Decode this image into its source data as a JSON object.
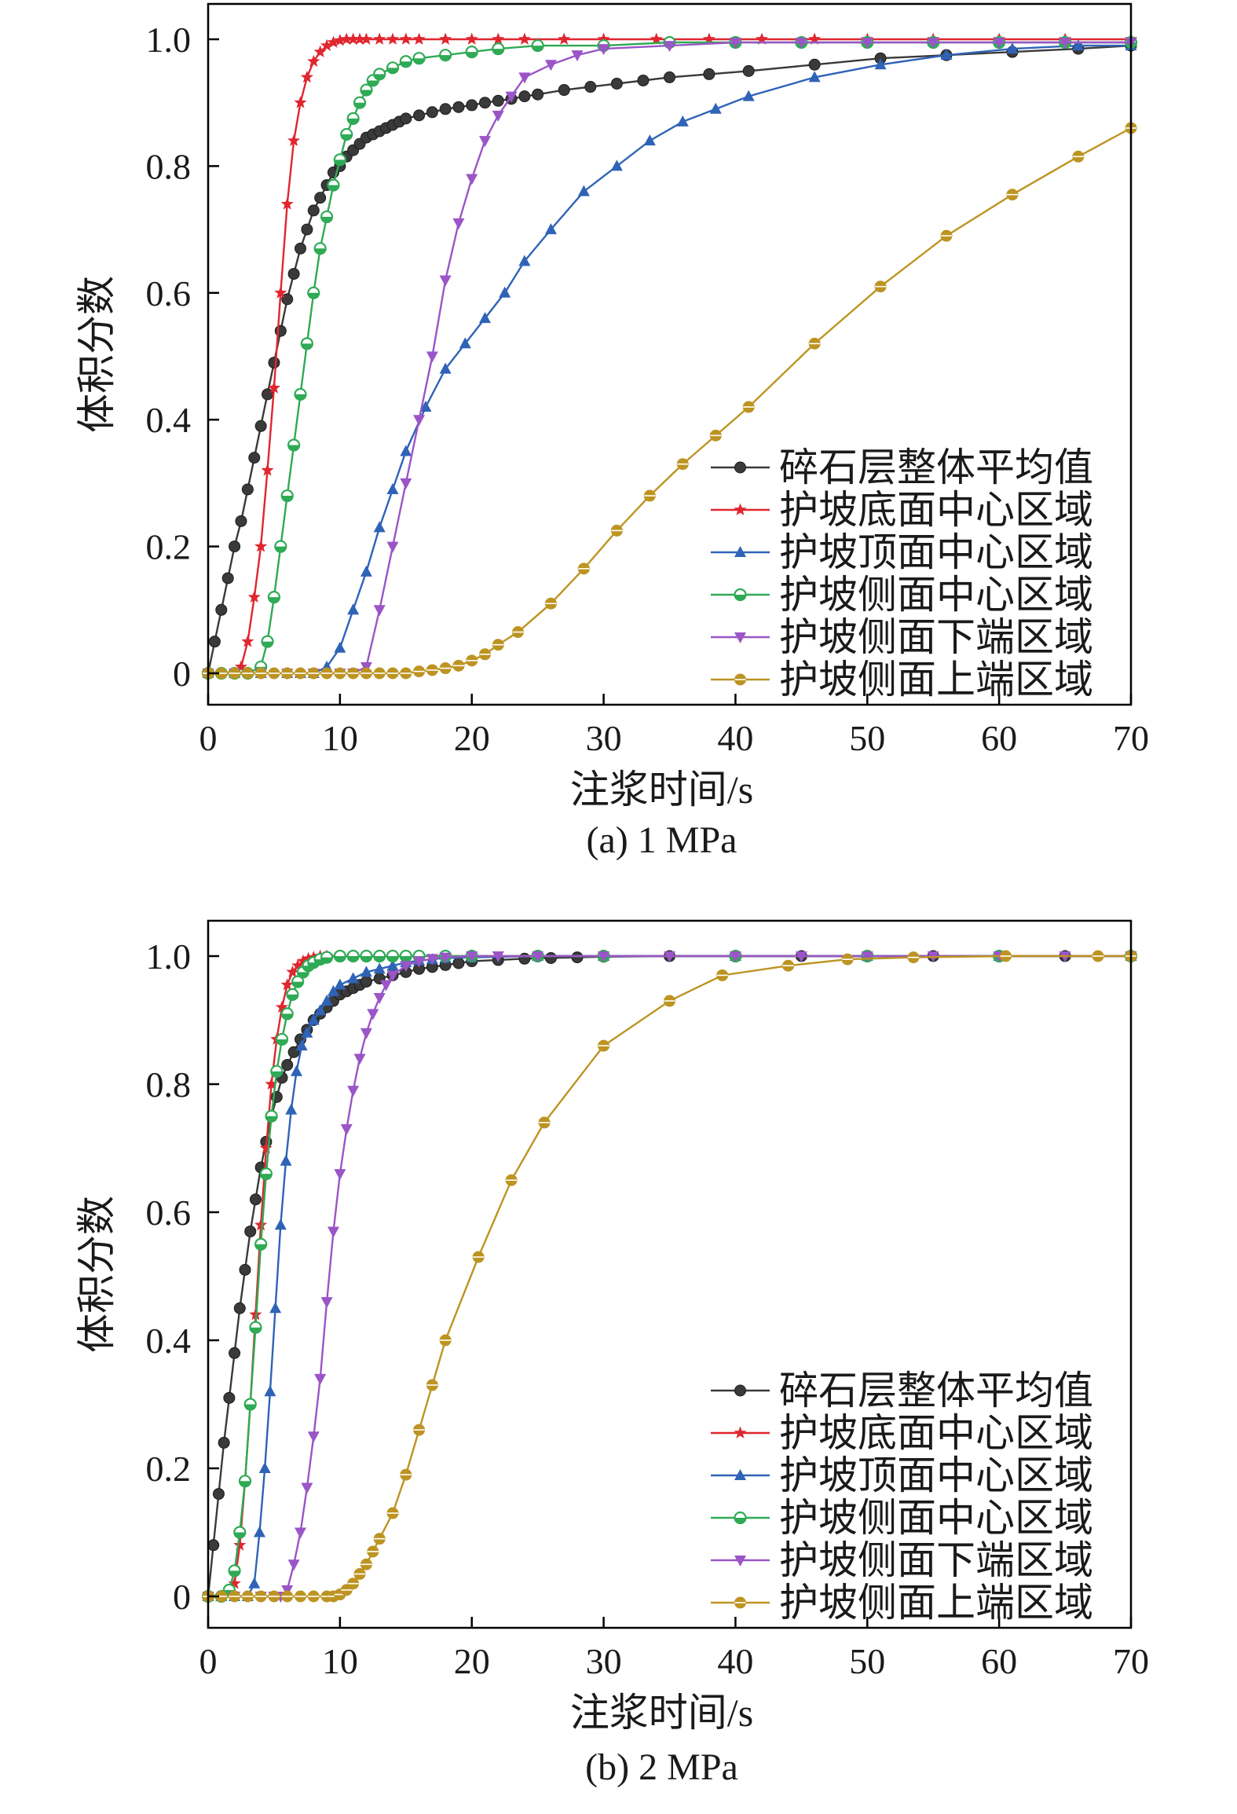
{
  "colors": {
    "average": "#3a3a3a",
    "bottom_center": "#e0262f",
    "top_center": "#2f63b7",
    "side_center": "#2faa55",
    "side_lower": "#9a55c7",
    "side_upper": "#bd9422",
    "axis": "#000000"
  },
  "chart_data": [
    {
      "type": "line",
      "caption": "(a) 1 MPa",
      "xlabel": "注浆时间/s",
      "ylabel": "体积分数",
      "xlim": [
        0,
        70
      ],
      "ylim": [
        0,
        1.0
      ],
      "xticks": [
        "0",
        "10",
        "20",
        "30",
        "40",
        "50",
        "60",
        "70"
      ],
      "yticks": [
        "0",
        "0.2",
        "0.4",
        "0.6",
        "0.8",
        "1.0"
      ],
      "legend_position": "bottom-right",
      "series": [
        {
          "name": "碎石层整体平均值",
          "marker": "circle",
          "color_key": "average",
          "x": [
            0,
            0.5,
            1,
            1.5,
            2,
            2.5,
            3,
            3.5,
            4,
            4.5,
            5,
            5.5,
            6,
            6.5,
            7,
            7.5,
            8,
            8.5,
            9,
            9.5,
            10,
            10.5,
            11,
            11.5,
            12,
            12.5,
            13,
            13.5,
            14,
            14.5,
            15,
            16,
            17,
            18,
            19,
            20,
            21,
            22,
            23,
            24,
            25,
            27,
            29,
            31,
            33,
            35,
            38,
            41,
            46,
            51,
            56,
            61,
            66,
            70
          ],
          "y": [
            0,
            0.05,
            0.1,
            0.15,
            0.2,
            0.24,
            0.29,
            0.34,
            0.39,
            0.44,
            0.49,
            0.54,
            0.59,
            0.63,
            0.67,
            0.7,
            0.73,
            0.75,
            0.77,
            0.79,
            0.8,
            0.815,
            0.825,
            0.835,
            0.845,
            0.85,
            0.855,
            0.86,
            0.865,
            0.87,
            0.875,
            0.88,
            0.885,
            0.89,
            0.893,
            0.896,
            0.9,
            0.903,
            0.906,
            0.91,
            0.913,
            0.92,
            0.925,
            0.93,
            0.935,
            0.94,
            0.945,
            0.95,
            0.96,
            0.97,
            0.975,
            0.98,
            0.985,
            0.99
          ]
        },
        {
          "name": "护坡底面中心区域",
          "marker": "star",
          "color_key": "bottom_center",
          "x": [
            0,
            1,
            2,
            2.5,
            3,
            3.5,
            4,
            4.5,
            5,
            5.5,
            6,
            6.5,
            7,
            7.5,
            8,
            8.5,
            9,
            9.5,
            10,
            10.5,
            11,
            11.5,
            12,
            13,
            14,
            15,
            16,
            18,
            20,
            22,
            24,
            27,
            30,
            34,
            38,
            42,
            46,
            50,
            55,
            60,
            65,
            70
          ],
          "y": [
            0,
            0,
            0,
            0.01,
            0.05,
            0.12,
            0.2,
            0.32,
            0.45,
            0.6,
            0.74,
            0.84,
            0.9,
            0.94,
            0.965,
            0.98,
            0.99,
            0.995,
            0.998,
            1,
            1,
            1,
            1,
            1,
            1,
            1,
            1,
            1,
            1,
            1,
            1,
            1,
            1,
            1,
            1,
            1,
            1,
            1,
            1,
            1,
            1,
            1
          ]
        },
        {
          "name": "护坡顶面中心区域",
          "marker": "triangle-up",
          "color_key": "top_center",
          "x": [
            0,
            2,
            4,
            6,
            7,
            8,
            9,
            10,
            11,
            12,
            13,
            14,
            15,
            16.5,
            18,
            19.5,
            21,
            22.5,
            24,
            26,
            28.5,
            31,
            33.5,
            36,
            38.5,
            41,
            46,
            51,
            56,
            61,
            66,
            70
          ],
          "y": [
            0,
            0,
            0,
            0,
            0,
            0,
            0.01,
            0.04,
            0.1,
            0.16,
            0.23,
            0.29,
            0.35,
            0.42,
            0.48,
            0.52,
            0.56,
            0.6,
            0.65,
            0.7,
            0.76,
            0.8,
            0.84,
            0.87,
            0.89,
            0.91,
            0.94,
            0.96,
            0.975,
            0.985,
            0.99,
            0.99
          ]
        },
        {
          "name": "护坡侧面中心区域",
          "marker": "circle-half",
          "color_key": "side_center",
          "x": [
            0,
            1,
            2,
            3,
            4,
            4.5,
            5,
            5.5,
            6,
            6.5,
            7,
            7.5,
            8,
            8.5,
            9,
            9.5,
            10,
            10.5,
            11,
            11.5,
            12,
            12.5,
            13,
            14,
            15,
            16,
            18,
            20,
            22,
            25,
            30,
            35,
            40,
            45,
            50,
            55,
            60,
            65,
            70
          ],
          "y": [
            0,
            0,
            0,
            0,
            0.01,
            0.05,
            0.12,
            0.2,
            0.28,
            0.36,
            0.44,
            0.52,
            0.6,
            0.67,
            0.72,
            0.77,
            0.81,
            0.85,
            0.875,
            0.9,
            0.92,
            0.935,
            0.945,
            0.955,
            0.965,
            0.97,
            0.975,
            0.98,
            0.985,
            0.99,
            0.99,
            0.995,
            0.995,
            0.995,
            0.995,
            0.995,
            0.995,
            0.995,
            0.995
          ]
        },
        {
          "name": "护坡侧面下端区域",
          "marker": "triangle-down",
          "color_key": "side_lower",
          "x": [
            0,
            2,
            4,
            6,
            8,
            10,
            11,
            12,
            13,
            14,
            15,
            16,
            17,
            18,
            19,
            20,
            21,
            22,
            23,
            24,
            26,
            28,
            30,
            35,
            40,
            45,
            50,
            55,
            60,
            65,
            70
          ],
          "y": [
            0,
            0,
            0,
            0,
            0,
            0,
            0,
            0.01,
            0.1,
            0.2,
            0.3,
            0.4,
            0.5,
            0.62,
            0.71,
            0.78,
            0.84,
            0.88,
            0.91,
            0.94,
            0.96,
            0.975,
            0.985,
            0.99,
            0.995,
            0.995,
            0.995,
            0.995,
            0.995,
            0.995,
            0.995
          ]
        },
        {
          "name": "护坡侧面上端区域",
          "marker": "circle-cross",
          "color_key": "side_upper",
          "x": [
            0,
            1,
            2,
            3,
            4,
            5,
            6,
            7,
            8,
            9,
            10,
            11,
            12,
            13,
            14,
            15,
            16,
            17,
            18,
            19,
            20,
            21,
            22,
            23.5,
            26,
            28.5,
            31,
            33.5,
            36,
            38.5,
            41,
            46,
            51,
            56,
            61,
            66,
            70
          ],
          "y": [
            0,
            0,
            0,
            0,
            0,
            0,
            0,
            0,
            0,
            0,
            0,
            0,
            0,
            0,
            0,
            0,
            0.003,
            0.005,
            0.008,
            0.012,
            0.02,
            0.03,
            0.045,
            0.065,
            0.11,
            0.165,
            0.225,
            0.28,
            0.33,
            0.375,
            0.42,
            0.52,
            0.61,
            0.69,
            0.755,
            0.815,
            0.86
          ]
        }
      ]
    },
    {
      "type": "line",
      "caption": "(b) 2 MPa",
      "xlabel": "注浆时间/s",
      "ylabel": "体积分数",
      "xlim": [
        0,
        70
      ],
      "ylim": [
        0,
        1.0
      ],
      "xticks": [
        "0",
        "10",
        "20",
        "30",
        "40",
        "50",
        "60",
        "70"
      ],
      "yticks": [
        "0",
        "0.2",
        "0.4",
        "0.6",
        "0.8",
        "1.0"
      ],
      "legend_position": "bottom-right",
      "series": [
        {
          "name": "碎石层整体平均值",
          "marker": "circle",
          "color_key": "average",
          "x": [
            0,
            0.4,
            0.8,
            1.2,
            1.6,
            2,
            2.4,
            2.8,
            3.2,
            3.6,
            4,
            4.4,
            4.8,
            5.2,
            5.6,
            6,
            6.5,
            7,
            7.5,
            8,
            8.5,
            9,
            9.5,
            10,
            10.5,
            11,
            11.5,
            12,
            13,
            14,
            15,
            16,
            17,
            18,
            19,
            20,
            22,
            24,
            26,
            28,
            30,
            35,
            40,
            45,
            50,
            55,
            60,
            65,
            70
          ],
          "y": [
            0,
            0.08,
            0.16,
            0.24,
            0.31,
            0.38,
            0.45,
            0.51,
            0.57,
            0.62,
            0.67,
            0.71,
            0.75,
            0.78,
            0.81,
            0.83,
            0.85,
            0.87,
            0.885,
            0.9,
            0.91,
            0.92,
            0.93,
            0.94,
            0.945,
            0.95,
            0.955,
            0.96,
            0.965,
            0.97,
            0.975,
            0.98,
            0.983,
            0.986,
            0.989,
            0.992,
            0.994,
            0.996,
            0.997,
            0.998,
            0.999,
            1,
            1,
            1,
            1,
            1,
            1,
            1,
            1
          ]
        },
        {
          "name": "护坡底面中心区域",
          "marker": "star",
          "color_key": "bottom_center",
          "x": [
            0,
            1,
            2,
            2.4,
            2.8,
            3.2,
            3.6,
            4,
            4.4,
            4.8,
            5.2,
            5.6,
            6,
            6.4,
            6.8,
            7.2,
            7.6,
            8,
            8.5,
            9,
            10,
            12,
            14,
            16,
            18,
            20,
            25,
            30,
            40,
            50,
            60,
            70
          ],
          "y": [
            0,
            0,
            0.02,
            0.08,
            0.18,
            0.3,
            0.44,
            0.58,
            0.7,
            0.8,
            0.87,
            0.92,
            0.955,
            0.975,
            0.985,
            0.992,
            0.996,
            0.998,
            1,
            1,
            1,
            1,
            1,
            1,
            1,
            1,
            1,
            1,
            1,
            1,
            1,
            1
          ]
        },
        {
          "name": "护坡顶面中心区域",
          "marker": "triangle-up",
          "color_key": "top_center",
          "x": [
            0,
            1,
            2,
            3,
            3.5,
            3.9,
            4.3,
            4.7,
            5.1,
            5.5,
            5.9,
            6.3,
            6.7,
            7.1,
            7.5,
            8,
            8.5,
            9,
            9.5,
            10,
            11,
            12,
            13,
            14,
            15,
            16,
            17,
            18,
            20,
            25,
            30,
            40,
            50,
            60,
            70
          ],
          "y": [
            0,
            0,
            0,
            0,
            0.02,
            0.1,
            0.2,
            0.32,
            0.45,
            0.58,
            0.68,
            0.76,
            0.82,
            0.86,
            0.88,
            0.9,
            0.915,
            0.93,
            0.945,
            0.955,
            0.965,
            0.975,
            0.98,
            0.985,
            0.99,
            0.993,
            0.995,
            0.997,
            0.998,
            1,
            1,
            1,
            1,
            1,
            1
          ]
        },
        {
          "name": "护坡侧面中心区域",
          "marker": "circle-half",
          "color_key": "side_center",
          "x": [
            0,
            1,
            1.6,
            2,
            2.4,
            2.8,
            3.2,
            3.6,
            4,
            4.4,
            4.8,
            5.2,
            5.6,
            6,
            6.4,
            6.8,
            7.2,
            7.6,
            8,
            8.5,
            9,
            10,
            11,
            12,
            13,
            14,
            15,
            16,
            18,
            20,
            25,
            30,
            40,
            50,
            60,
            70
          ],
          "y": [
            0,
            0,
            0.01,
            0.04,
            0.1,
            0.18,
            0.3,
            0.42,
            0.55,
            0.66,
            0.75,
            0.82,
            0.87,
            0.91,
            0.94,
            0.96,
            0.975,
            0.985,
            0.99,
            0.995,
            0.998,
            1,
            1,
            1,
            1,
            1,
            1,
            1,
            1,
            1,
            1,
            1,
            1,
            1,
            1,
            1
          ]
        },
        {
          "name": "护坡侧面下端区域",
          "marker": "triangle-down",
          "color_key": "side_lower",
          "x": [
            0,
            2,
            4,
            5,
            5.5,
            6,
            6.5,
            7,
            7.5,
            8,
            8.5,
            9,
            9.5,
            10,
            10.5,
            11,
            11.5,
            12,
            12.5,
            13,
            13.5,
            14,
            15,
            16,
            17,
            18,
            20,
            22,
            25,
            30,
            35,
            40,
            45,
            50,
            55,
            60,
            65,
            70
          ],
          "y": [
            0,
            0,
            0,
            0,
            0,
            0.01,
            0.05,
            0.1,
            0.17,
            0.25,
            0.34,
            0.46,
            0.57,
            0.66,
            0.73,
            0.79,
            0.84,
            0.88,
            0.91,
            0.935,
            0.955,
            0.97,
            0.985,
            0.992,
            0.996,
            0.998,
            1,
            1,
            1,
            1,
            1,
            1,
            1,
            1,
            1,
            1,
            1,
            1
          ]
        },
        {
          "name": "护坡侧面上端区域",
          "marker": "circle-cross",
          "color_key": "side_upper",
          "x": [
            0,
            1,
            2,
            3,
            4,
            5,
            6,
            7,
            8,
            9,
            9.5,
            10,
            10.5,
            11,
            11.5,
            12,
            12.5,
            13,
            14,
            15,
            16,
            17,
            18,
            20.5,
            23,
            25.5,
            30,
            35,
            39,
            44,
            48.5,
            53.5,
            60.5,
            67.5,
            70
          ],
          "y": [
            0,
            0,
            0,
            0,
            0,
            0,
            0,
            0,
            0,
            0,
            0,
            0.003,
            0.01,
            0.02,
            0.035,
            0.05,
            0.07,
            0.09,
            0.13,
            0.19,
            0.26,
            0.33,
            0.4,
            0.53,
            0.65,
            0.74,
            0.86,
            0.93,
            0.97,
            0.985,
            0.995,
            0.998,
            1,
            1,
            1
          ]
        }
      ]
    }
  ]
}
